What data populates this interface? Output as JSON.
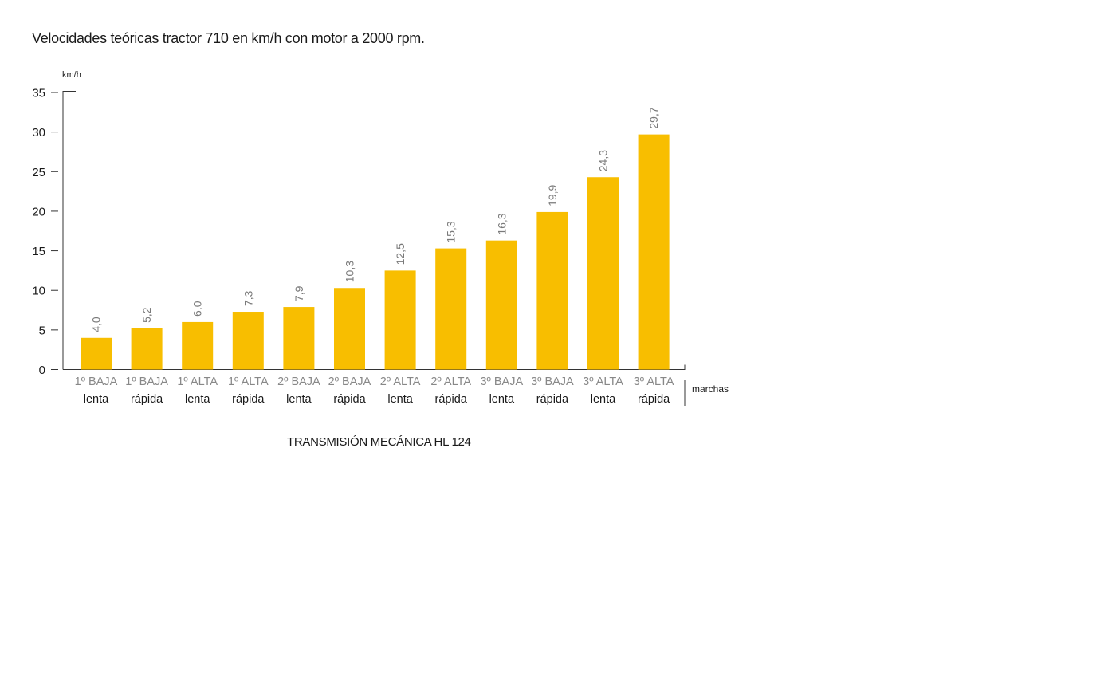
{
  "title": "Velocidades teóricas tractor 710 en km/h con motor a 2000 rpm.",
  "caption": "TRANSMISIÓN MECÁNICA HL 124",
  "chart_data": {
    "type": "bar",
    "title": "Velocidades teóricas tractor 710 en km/h con motor a 2000 rpm.",
    "ylabel": "km/h",
    "xlabel": "marchas",
    "ylim": [
      0,
      35
    ],
    "yticks": [
      0,
      5,
      10,
      15,
      20,
      25,
      30,
      35
    ],
    "grid": false,
    "categories": [
      {
        "gear": "1º BAJA",
        "mode": "lenta"
      },
      {
        "gear": "1º BAJA",
        "mode": "rápida"
      },
      {
        "gear": "1º ALTA",
        "mode": "lenta"
      },
      {
        "gear": "1º ALTA",
        "mode": "rápida"
      },
      {
        "gear": "2º BAJA",
        "mode": "lenta"
      },
      {
        "gear": "2º BAJA",
        "mode": "rápida"
      },
      {
        "gear": "2º ALTA",
        "mode": "lenta"
      },
      {
        "gear": "2º ALTA",
        "mode": "rápida"
      },
      {
        "gear": "3º BAJA",
        "mode": "lenta"
      },
      {
        "gear": "3º BAJA",
        "mode": "rápida"
      },
      {
        "gear": "3º ALTA",
        "mode": "lenta"
      },
      {
        "gear": "3º ALTA",
        "mode": "rápida"
      }
    ],
    "values": [
      4.0,
      5.2,
      6.0,
      7.3,
      7.9,
      10.3,
      12.5,
      15.3,
      16.3,
      19.9,
      24.3,
      29.7
    ],
    "value_labels": [
      "4,0",
      "5,2",
      "6,0",
      "7,3",
      "7,9",
      "10,3",
      "12,5",
      "15,3",
      "16,3",
      "19,9",
      "24,3",
      "29,7"
    ],
    "colors": {
      "bar": "#F8BE00",
      "value_label": "#7a7a7a",
      "gear_label": "#888888",
      "mode_label": "#1a1a1a",
      "axis": "#333333"
    }
  }
}
